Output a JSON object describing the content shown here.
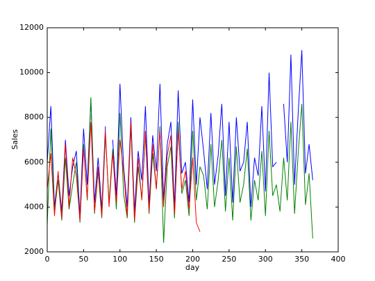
{
  "chart_data": {
    "type": "line",
    "x_label": "day",
    "y_label": "Sales",
    "x": [
      0,
      5,
      10,
      15,
      20,
      25,
      30,
      35,
      40,
      45,
      50,
      55,
      60,
      65,
      70,
      75,
      80,
      85,
      90,
      95,
      100,
      105,
      110,
      115,
      120,
      125,
      130,
      135,
      140,
      145,
      150,
      155,
      160,
      165,
      170,
      175,
      180,
      185,
      190,
      195,
      200,
      205,
      210,
      215,
      220,
      225,
      230,
      235,
      240,
      245,
      250,
      255,
      260,
      265,
      270,
      275,
      280,
      285,
      290,
      295,
      300,
      305,
      310,
      315,
      320,
      325,
      330,
      335,
      340,
      345,
      350,
      355,
      360,
      365
    ],
    "series": [
      {
        "name": "blue",
        "color": "#0000ff",
        "values": [
          6000,
          8500,
          4000,
          5500,
          3800,
          7000,
          4500,
          5800,
          6500,
          3600,
          7500,
          5000,
          8800,
          4200,
          6200,
          3900,
          7600,
          null,
          7000,
          4500,
          9500,
          5800,
          4000,
          8000,
          3800,
          6500,
          5200,
          8500,
          4100,
          7200,
          5600,
          9500,
          4300,
          6800,
          7800,
          4000,
          9200,
          5500,
          6000,
          4200,
          8800,
          5000,
          8000,
          6500,
          4800,
          8200,
          5000,
          6300,
          8600,
          4500,
          7800,
          4200,
          8000,
          5600,
          6000,
          7800,
          4000,
          6200,
          5400,
          8500,
          4700,
          10000,
          5800,
          6000,
          null,
          8600,
          6000,
          10800,
          5000,
          8200,
          11000,
          5500,
          6800,
          5200
        ]
      },
      {
        "name": "green",
        "color": "#008000",
        "values": [
          3200,
          7500,
          3800,
          5200,
          3400,
          6200,
          3900,
          5000,
          6000,
          3300,
          6800,
          4300,
          8900,
          3700,
          5600,
          3500,
          7200,
          4200,
          6600,
          3900,
          8200,
          4600,
          3500,
          7600,
          3300,
          5800,
          4400,
          7200,
          3700,
          6400,
          4800,
          7600,
          2400,
          5800,
          6700,
          3500,
          7800,
          4600,
          5200,
          3600,
          7400,
          4300,
          5800,
          5400,
          3900,
          6800,
          4000,
          5200,
          7000,
          3800,
          6200,
          3400,
          6700,
          4200,
          5000,
          6600,
          3400,
          5200,
          4300,
          6500,
          3600,
          7400,
          4500,
          5000,
          3800,
          6200,
          4300,
          7800,
          3700,
          6400,
          8600,
          4100,
          5500,
          2600
        ]
      },
      {
        "name": "red",
        "color": "#ff0000",
        "values": [
          4800,
          6400,
          3600,
          5600,
          3500,
          6800,
          4000,
          6200,
          5400,
          3400,
          6600,
          4400,
          7800,
          3800,
          5800,
          3600,
          7400,
          4000,
          6400,
          4200,
          7000,
          5600,
          3600,
          7800,
          3400,
          6200,
          4300,
          7400,
          3800,
          6800,
          4800,
          7400,
          4000,
          6300,
          7200,
          3700,
          7400,
          4800,
          5600,
          3900,
          6200,
          3300,
          2900,
          null,
          null,
          null,
          null,
          null,
          null,
          null,
          null,
          null,
          null,
          null,
          null,
          null,
          null,
          null,
          null,
          null,
          null,
          null,
          null,
          null,
          null,
          null,
          null,
          null,
          null,
          null,
          null,
          null,
          null,
          null
        ]
      }
    ],
    "xlim": [
      0,
      400
    ],
    "xticks": [
      0,
      50,
      100,
      150,
      200,
      250,
      300,
      350,
      400
    ],
    "ylim": [
      2000,
      12000
    ],
    "yticks": [
      2000,
      4000,
      6000,
      8000,
      10000,
      12000
    ]
  }
}
